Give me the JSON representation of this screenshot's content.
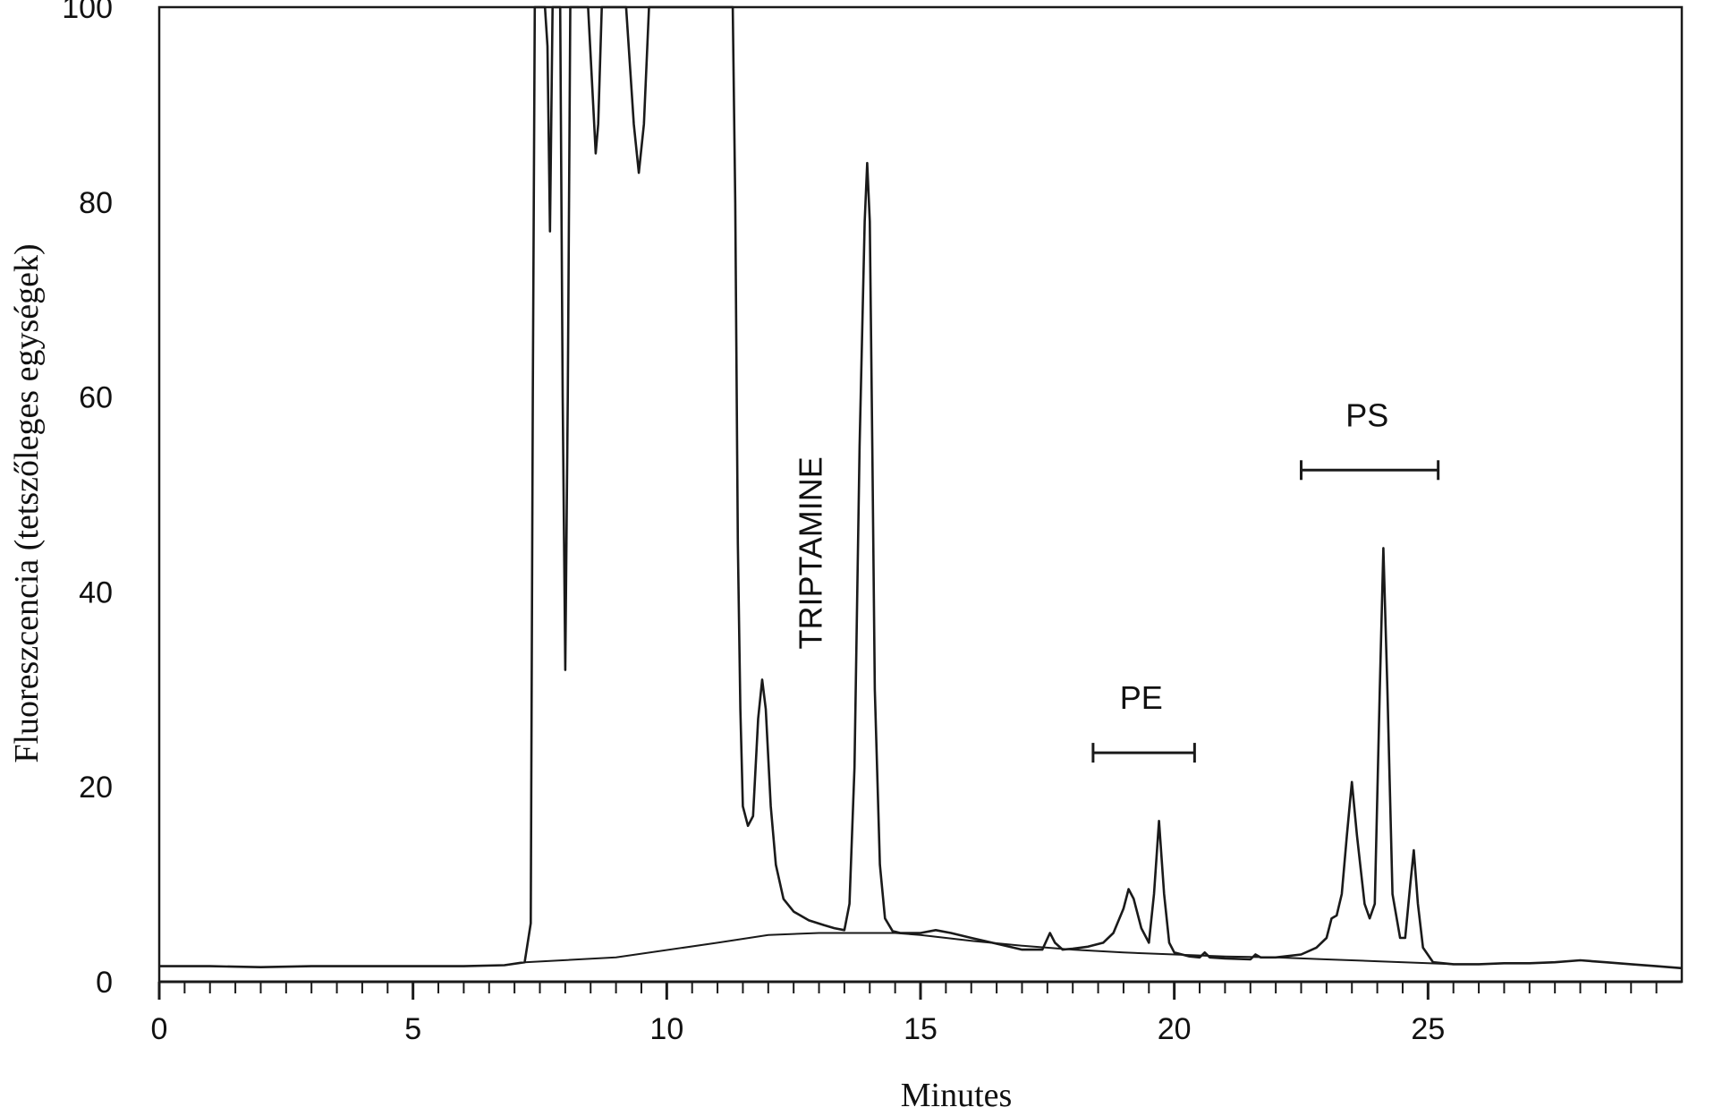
{
  "chart_data": {
    "type": "line",
    "title": "",
    "xlabel": "Minutes",
    "ylabel": "Fluoreszcencia (tetszőleges egységek)",
    "xlim": [
      0,
      30
    ],
    "ylim": [
      0,
      100
    ],
    "x_ticks": [
      0,
      5,
      10,
      15,
      20,
      25
    ],
    "y_ticks": [
      0,
      20,
      40,
      60,
      80,
      100
    ],
    "grid": false,
    "legend": "none",
    "line_color": "#1a1a1a",
    "series": [
      {
        "x": [
          0,
          1,
          2,
          3,
          4,
          5,
          6,
          6.8,
          7.2,
          7.32,
          7.36,
          7.4,
          7.45,
          7.5,
          7.6,
          7.65,
          7.7,
          7.75,
          7.85,
          7.9,
          7.95,
          8.0,
          8.05,
          8.1,
          8.15,
          8.2,
          8.3,
          8.45,
          8.55,
          8.6,
          8.65,
          8.72,
          8.8,
          8.9,
          9.05,
          9.2,
          9.35,
          9.45,
          9.55,
          9.65,
          9.8,
          10.0,
          10.5,
          11.0,
          11.3,
          11.35,
          11.4,
          11.45,
          11.5,
          11.6,
          11.7,
          11.8,
          11.88,
          11.95,
          12.05,
          12.15,
          12.3,
          12.5,
          12.8,
          13.1,
          13.3,
          13.5,
          13.6,
          13.7,
          13.8,
          13.9,
          13.95,
          14.0,
          14.05,
          14.1,
          14.2,
          14.3,
          14.45,
          14.6,
          15.0,
          15.3,
          15.6,
          16.0,
          16.5,
          17.0,
          17.4,
          17.55,
          17.65,
          17.8,
          18.0,
          18.3,
          18.6,
          18.8,
          19.0,
          19.1,
          19.2,
          19.35,
          19.5,
          19.6,
          19.7,
          19.8,
          19.9,
          20.0,
          20.3,
          20.5,
          20.6,
          20.7,
          21.0,
          21.5,
          21.6,
          21.7,
          22.0,
          22.5,
          22.8,
          23.0,
          23.1,
          23.2,
          23.3,
          23.4,
          23.5,
          23.6,
          23.75,
          23.85,
          23.95,
          24.05,
          24.12,
          24.2,
          24.3,
          24.45,
          24.55,
          24.65,
          24.72,
          24.8,
          24.9,
          25.1,
          25.5,
          26.0,
          26.5,
          27.0,
          27.5,
          28.0,
          28.5,
          29.0,
          29.5,
          30.0
        ],
        "y": [
          1.6,
          1.6,
          1.5,
          1.6,
          1.6,
          1.6,
          1.6,
          1.7,
          2.0,
          6,
          60,
          100,
          100,
          100,
          100,
          96,
          77,
          100,
          100,
          100,
          60,
          32,
          60,
          100,
          100,
          100,
          100,
          100,
          90,
          85,
          88,
          100,
          100,
          100,
          100,
          100,
          88,
          83,
          88,
          100,
          100,
          100,
          100,
          100,
          100,
          80,
          45,
          28,
          18,
          16,
          17,
          27,
          31,
          28,
          18,
          12,
          8.5,
          7.2,
          6.3,
          5.8,
          5.5,
          5.3,
          8,
          22,
          55,
          78,
          84,
          78,
          55,
          30,
          12,
          6.5,
          5.2,
          5.0,
          5.0,
          5.3,
          5.0,
          4.5,
          3.9,
          3.3,
          3.3,
          5.0,
          4.0,
          3.3,
          3.4,
          3.6,
          4.0,
          5.0,
          7.5,
          9.5,
          8.5,
          5.5,
          4.0,
          9.0,
          16.5,
          9.0,
          4.0,
          3.0,
          2.6,
          2.5,
          3.0,
          2.5,
          2.4,
          2.3,
          2.8,
          2.5,
          2.5,
          2.8,
          3.5,
          4.5,
          6.5,
          6.8,
          9.0,
          15,
          20.5,
          15,
          8.0,
          6.5,
          8.0,
          30,
          44.5,
          30,
          9.0,
          4.5,
          4.5,
          10,
          13.5,
          8.0,
          3.5,
          2.0,
          1.8,
          1.8,
          1.9,
          1.9,
          2.0,
          2.2,
          2.0,
          1.8,
          1.6,
          1.4
        ]
      },
      {
        "x": [
          7.2,
          9.0,
          11.0,
          12.0,
          13.0,
          13.5,
          14.0,
          14.5,
          15.0,
          16.0,
          17.0,
          18.0,
          19.0,
          20.0,
          21.0,
          22.0,
          23.0,
          24.0,
          25.0,
          25.5
        ],
        "y": [
          2.0,
          2.5,
          4.0,
          4.8,
          5.0,
          5.0,
          5.0,
          5.0,
          4.8,
          4.2,
          3.7,
          3.3,
          3.0,
          2.8,
          2.6,
          2.5,
          2.3,
          2.1,
          1.9,
          1.8
        ]
      }
    ],
    "annotations": [
      {
        "text": "TRIPTAMINE",
        "x": 13.05,
        "y": 44
      },
      {
        "text": "PE",
        "x": 19.35,
        "y": 28,
        "range": [
          18.4,
          20.4
        ],
        "range_y": 23.5
      },
      {
        "text": "PS",
        "x": 23.8,
        "y": 57,
        "range": [
          22.5,
          25.2
        ],
        "range_y": 52.5
      }
    ]
  }
}
